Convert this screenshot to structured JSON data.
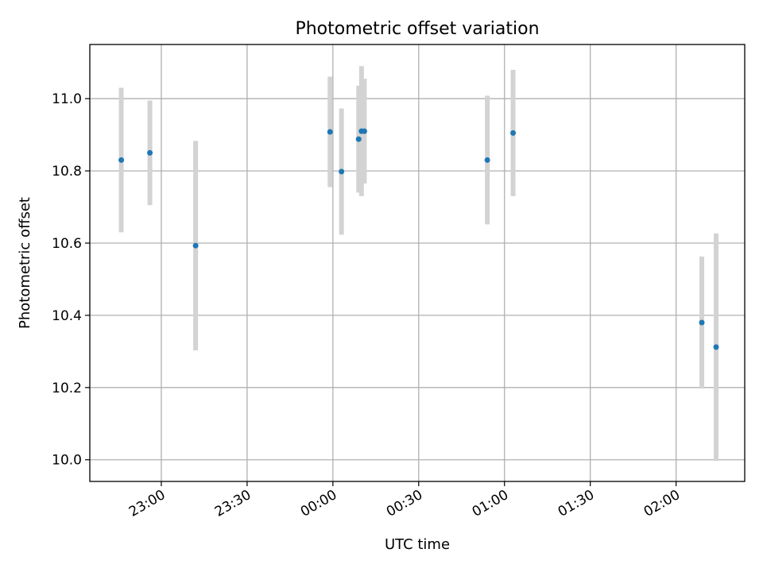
{
  "chart_data": {
    "type": "scatter",
    "title": "Photometric offset variation",
    "xlabel": "UTC time",
    "ylabel": "Photometric offset",
    "grid": true,
    "x_is_time": true,
    "x_ticks": [
      "23:00",
      "23:30",
      "00:00",
      "00:30",
      "01:00",
      "01:30",
      "02:00"
    ],
    "y_ticks": [
      "10.0",
      "10.2",
      "10.4",
      "10.6",
      "10.8",
      "11.0"
    ],
    "ylim": [
      9.94,
      11.15
    ],
    "xlim": [
      "22:35",
      "02:24"
    ],
    "colors": {
      "point": "#1f77b4",
      "errorbar": "#d3d3d3"
    },
    "series": [
      {
        "points": [
          {
            "x": "22:46",
            "y": 10.83,
            "yerr": 0.2
          },
          {
            "x": "22:56",
            "y": 10.85,
            "yerr": 0.145
          },
          {
            "x": "23:12",
            "y": 10.593,
            "yerr": 0.29
          },
          {
            "x": "23:59",
            "y": 10.908,
            "yerr": 0.153
          },
          {
            "x": "00:03",
            "y": 10.798,
            "yerr": 0.175
          },
          {
            "x": "00:09",
            "y": 10.888,
            "yerr": 0.148
          },
          {
            "x": "00:10",
            "y": 10.91,
            "yerr": 0.18
          },
          {
            "x": "00:11",
            "y": 10.91,
            "yerr": 0.145
          },
          {
            "x": "00:54",
            "y": 10.83,
            "yerr": 0.178
          },
          {
            "x": "01:03",
            "y": 10.905,
            "yerr": 0.175
          },
          {
            "x": "02:09",
            "y": 10.38,
            "yerr": 0.183
          },
          {
            "x": "02:14",
            "y": 10.312,
            "yerr": 0.315
          }
        ]
      }
    ]
  }
}
